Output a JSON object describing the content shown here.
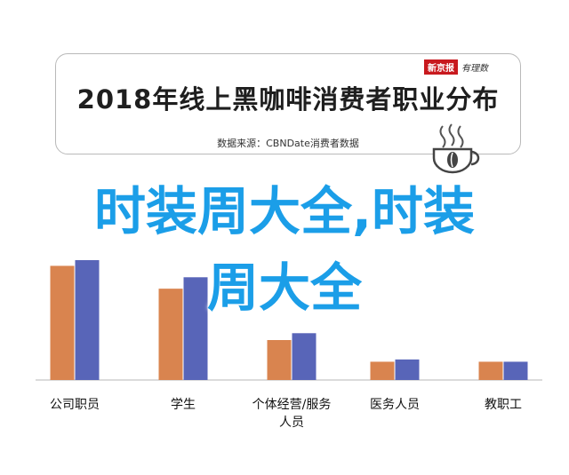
{
  "header": {
    "title": "2018年线上黑咖啡消费者职业分布",
    "source": "数据来源：CBNDate消费者数据",
    "brand_red": "新京报",
    "brand_sub": "有理数"
  },
  "overlay": {
    "line1": "时装周大全,时装",
    "line2": "周大全"
  },
  "colors": {
    "series_a": "#d9844f",
    "series_b": "#5865b8",
    "overlay_text": "#1b9ee8",
    "axis": "#cfcfcf"
  },
  "icons": [
    "coffee-cup-icon"
  ],
  "chart_data": {
    "type": "bar",
    "categories": [
      "公司职员",
      "学生",
      "个体经营/服务\n人员",
      "医务人员",
      "教职工"
    ],
    "series": [
      {
        "values": [
          100,
          80,
          35,
          16,
          16
        ]
      },
      {
        "values": [
          105,
          90,
          41,
          18,
          16
        ]
      }
    ],
    "ylim": [
      0,
      110
    ],
    "grid": false,
    "legend": "none"
  }
}
